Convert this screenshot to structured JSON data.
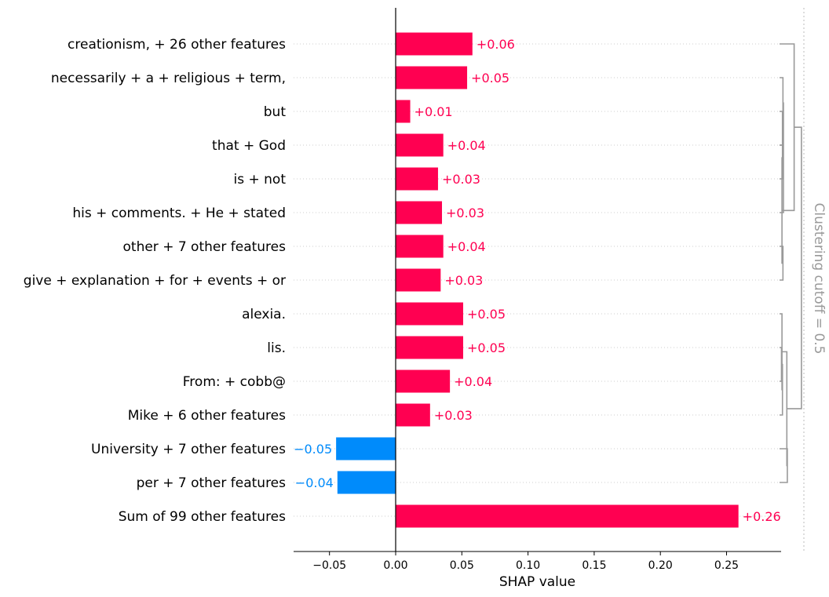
{
  "chart_data": {
    "type": "bar",
    "orientation": "horizontal",
    "xlabel": "SHAP value",
    "xlim": [
      -0.077,
      0.29
    ],
    "xticks": [
      -0.05,
      0.0,
      0.05,
      0.1,
      0.15,
      0.2,
      0.25
    ],
    "xtick_labels": [
      "−0.05",
      "0.00",
      "0.05",
      "0.10",
      "0.15",
      "0.20",
      "0.25"
    ],
    "categories": [
      "creationism, + 26 other features",
      "necessarily + a + religious + term,",
      "but",
      "that + God",
      "is + not",
      "his + comments. + He + stated",
      "other + 7 other features",
      "give + explanation + for + events + or",
      "alexia.",
      "lis.",
      "From: + cobb@",
      "Mike + 6 other features",
      "University + 7 other features",
      "per + 7 other features",
      "Sum of 99 other features"
    ],
    "values": [
      0.058,
      0.054,
      0.011,
      0.036,
      0.032,
      0.035,
      0.036,
      0.034,
      0.051,
      0.051,
      0.041,
      0.026,
      -0.045,
      -0.044,
      0.259
    ],
    "value_labels": [
      "+0.06",
      "+0.05",
      "+0.01",
      "+0.04",
      "+0.03",
      "+0.03",
      "+0.04",
      "+0.03",
      "+0.05",
      "+0.05",
      "+0.04",
      "+0.03",
      "−0.05",
      "−0.04",
      "+0.26"
    ],
    "colors": {
      "positive": "#ff0051",
      "negative": "#008bfb",
      "dendrogram": "#999999"
    },
    "clustering_cutoff_label": "Clustering cutoff = 0.5",
    "dendrogram": {
      "max_distance": 1.0,
      "links": [
        {
          "a": 2,
          "b": 3,
          "dist": 0.06
        },
        {
          "a": 3,
          "b": 4,
          "dist": 0.06
        },
        {
          "a": 6,
          "b": 7,
          "dist": 0.07
        },
        {
          "a": 1,
          "b": 2.5,
          "dist": 0.07
        },
        {
          "a": 1.75,
          "b": 5,
          "dist": 0.08
        },
        {
          "a": 12,
          "b": 13,
          "dist": 0.16
        },
        {
          "a": 9,
          "b": 10,
          "dist": 0.04
        },
        {
          "a": 9.5,
          "b": 11,
          "dist": 0.06
        },
        {
          "a": 8,
          "b": 10.25,
          "dist": 0.05
        },
        {
          "a": 9.125,
          "b": 12.5,
          "dist": 0.15
        },
        {
          "a": 3.375,
          "b": 6.5,
          "dist": 0.05
        },
        {
          "a": 0,
          "b": 4.9375,
          "dist": 0.3
        },
        {
          "a": 2.46875,
          "b": 10.8125,
          "dist": 0.45
        }
      ]
    },
    "grid": "dotted horizontal per row",
    "legend": "none"
  }
}
